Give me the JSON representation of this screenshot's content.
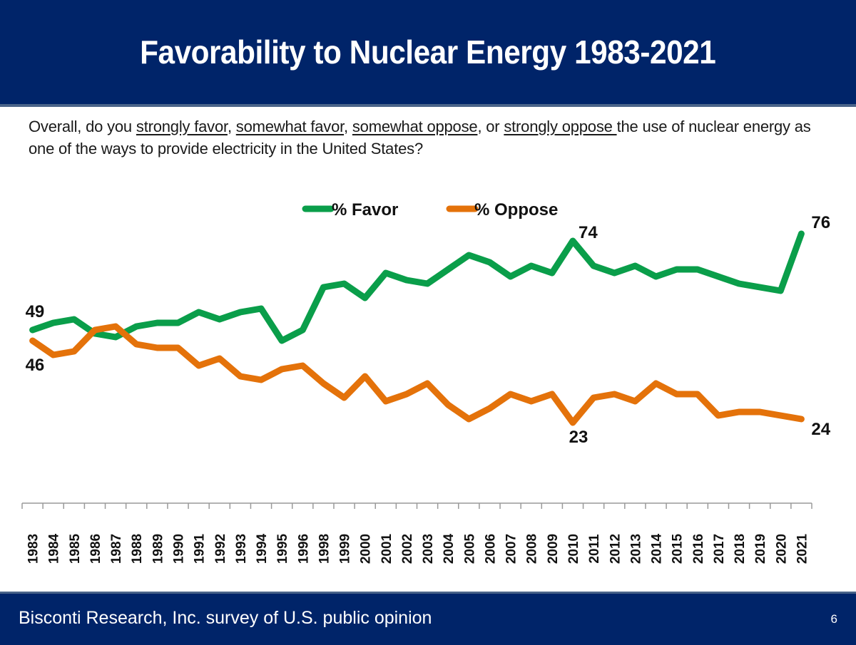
{
  "header": {
    "title": "Favorability to Nuclear Energy 1983-2021"
  },
  "question": {
    "parts": [
      {
        "text": "Overall, do you ",
        "underline": false
      },
      {
        "text": "strongly favor",
        "underline": true
      },
      {
        "text": ", ",
        "underline": false
      },
      {
        "text": "somewhat favor",
        "underline": true
      },
      {
        "text": ", ",
        "underline": false
      },
      {
        "text": "somewhat oppose",
        "underline": true
      },
      {
        "text": ", or ",
        "underline": false
      },
      {
        "text": "strongly oppose ",
        "underline": true
      },
      {
        "text": "the use of nuclear energy as one of the ways to provide electricity in the United States?",
        "underline": false
      }
    ]
  },
  "footer": {
    "source": "Bisconti Research, Inc. survey of U.S. public opinion",
    "page_number": "6"
  },
  "colors": {
    "header_bg": "#002469",
    "favor": "#0a9e4a",
    "oppose": "#e4720a"
  },
  "chart_data": {
    "type": "line",
    "title": "Favorability to Nuclear Energy 1983-2021",
    "xlabel": "",
    "ylabel": "",
    "ylim": [
      10,
      85
    ],
    "grid": false,
    "legend_position": "top-center",
    "categories": [
      "1983",
      "1984",
      "1985",
      "1986",
      "1987",
      "1988",
      "1989",
      "1990",
      "1991",
      "1992",
      "1993",
      "1994",
      "1995",
      "1996",
      "1998",
      "1999",
      "2000",
      "2001",
      "2002",
      "2003",
      "2004",
      "2005",
      "2006",
      "2007",
      "2008",
      "2009",
      "2010",
      "2011",
      "2012",
      "2013",
      "2014",
      "2015",
      "2016",
      "2017",
      "2018",
      "2019",
      "2020",
      "2021"
    ],
    "series": [
      {
        "name": "% Favor",
        "color": "#0a9e4a",
        "values": [
          49,
          51,
          52,
          48,
          47,
          50,
          51,
          51,
          54,
          52,
          54,
          55,
          46,
          49,
          61,
          62,
          58,
          65,
          63,
          62,
          66,
          70,
          68,
          64,
          67,
          65,
          74,
          67,
          65,
          67,
          64,
          66,
          66,
          64,
          62,
          61,
          60,
          76
        ]
      },
      {
        "name": "% Oppose",
        "color": "#e4720a",
        "values": [
          46,
          42,
          43,
          49,
          50,
          45,
          44,
          44,
          39,
          41,
          36,
          35,
          38,
          39,
          34,
          30,
          36,
          29,
          31,
          34,
          28,
          24,
          27,
          31,
          29,
          31,
          23,
          30,
          31,
          29,
          34,
          31,
          31,
          25,
          26,
          26,
          25,
          24
        ]
      }
    ],
    "annotations": [
      {
        "series": "% Favor",
        "category": "1983",
        "label": "49"
      },
      {
        "series": "% Oppose",
        "category": "1983",
        "label": "46"
      },
      {
        "series": "% Favor",
        "category": "2010",
        "label": "74"
      },
      {
        "series": "% Oppose",
        "category": "2010",
        "label": "23"
      },
      {
        "series": "% Favor",
        "category": "2021",
        "label": "76"
      },
      {
        "series": "% Oppose",
        "category": "2021",
        "label": "24"
      }
    ]
  }
}
